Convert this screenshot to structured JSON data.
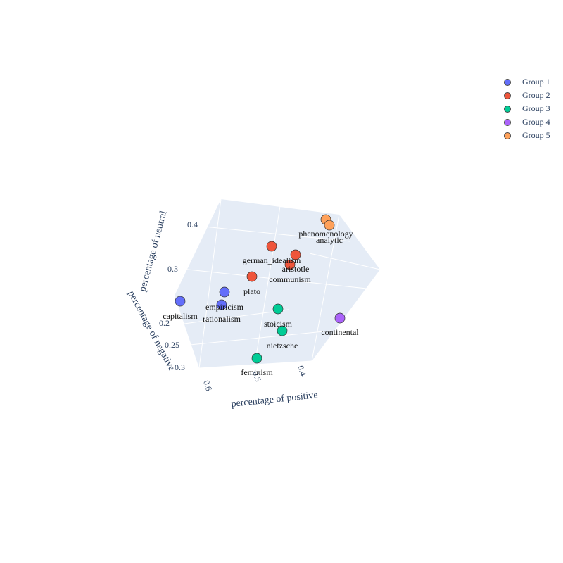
{
  "chart_data": {
    "type": "scatter3d",
    "axes": {
      "x": {
        "label": "percentage of positive",
        "ticks": [
          "0.6",
          "0.5",
          "0.4"
        ]
      },
      "y": {
        "label": "percentage of negative",
        "ticks": [
          "0.2",
          "0.25",
          "0.3"
        ]
      },
      "z": {
        "label": "percentage of neutral",
        "ticks": [
          "0.4",
          "0.3"
        ]
      }
    },
    "legend_position": "top-right",
    "series": [
      {
        "name": "Group 1",
        "color": "#636efa",
        "points": [
          {
            "label": "capitalism"
          },
          {
            "label": "empiricism"
          },
          {
            "label": "rationalism"
          }
        ]
      },
      {
        "name": "Group 2",
        "color": "#ef553b",
        "points": [
          {
            "label": "german_idealism"
          },
          {
            "label": "aristotle"
          },
          {
            "label": "communism"
          },
          {
            "label": "plato"
          }
        ]
      },
      {
        "name": "Group 3",
        "color": "#00cc96",
        "points": [
          {
            "label": "stoicism"
          },
          {
            "label": "nietzsche"
          },
          {
            "label": "feminism"
          }
        ]
      },
      {
        "name": "Group 4",
        "color": "#ab63fa",
        "points": [
          {
            "label": "continental"
          }
        ]
      },
      {
        "name": "Group 5",
        "color": "#ffa15a",
        "points": [
          {
            "label": "phenomenology"
          },
          {
            "label": "analytic"
          }
        ]
      }
    ]
  }
}
